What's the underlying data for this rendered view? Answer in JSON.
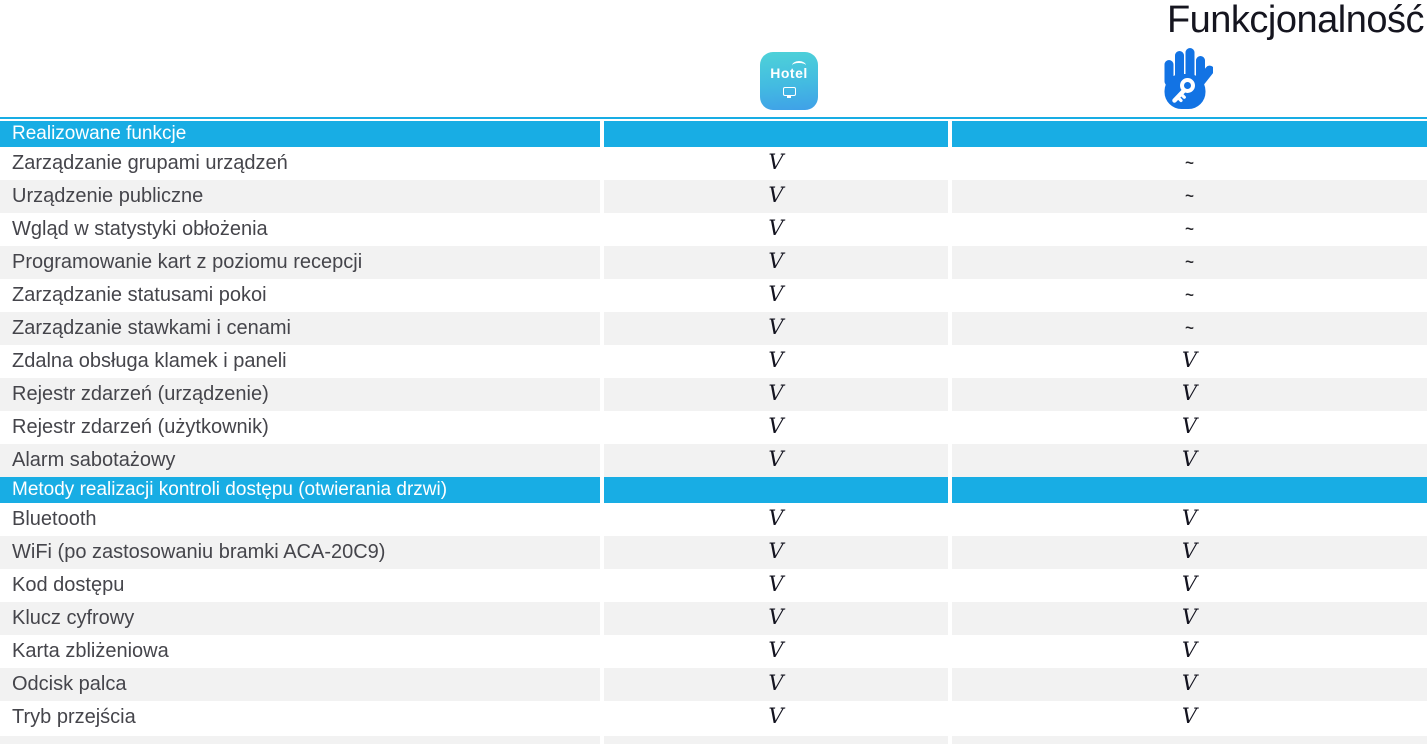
{
  "title": "Funkcjonalność",
  "icons": {
    "hotel": {
      "label": "Hotel"
    },
    "tthotel": {
      "description": "hand-with-key-app"
    }
  },
  "colors": {
    "accent_cyan": "#18ade4",
    "row_alt_gray": "#f2f2f2",
    "hand_blue": "#1273e4",
    "hotel_gradient_top": "#4ed2d8",
    "hotel_gradient_bottom": "#3fa0e8",
    "check_color": "#13131f",
    "title_color": "#15151f"
  },
  "table": {
    "value_symbols": {
      "supported": "V",
      "limited": "~"
    },
    "sections": [
      {
        "header": "Realizowane funkcje",
        "rows": [
          {
            "label": "Zarządzanie grupami urządzeń",
            "hotel": "V",
            "tthotel": "~"
          },
          {
            "label": "Urządzenie publiczne",
            "hotel": "V",
            "tthotel": "~"
          },
          {
            "label": "Wgląd w statystyki obłożenia",
            "hotel": "V",
            "tthotel": "~"
          },
          {
            "label": "Programowanie kart z poziomu recepcji",
            "hotel": "V",
            "tthotel": "~"
          },
          {
            "label": "Zarządzanie statusami pokoi",
            "hotel": "V",
            "tthotel": "~"
          },
          {
            "label": "Zarządzanie stawkami i cenami",
            "hotel": "V",
            "tthotel": "~"
          },
          {
            "label": "Zdalna obsługa klamek i paneli",
            "hotel": "V",
            "tthotel": "V"
          },
          {
            "label": "Rejestr zdarzeń (urządzenie)",
            "hotel": "V",
            "tthotel": "V"
          },
          {
            "label": "Rejestr zdarzeń (użytkownik)",
            "hotel": "V",
            "tthotel": "V"
          },
          {
            "label": "Alarm sabotażowy",
            "hotel": "V",
            "tthotel": "V"
          }
        ]
      },
      {
        "header": "Metody realizacji kontroli dostępu (otwierania drzwi)",
        "rows": [
          {
            "label": "Bluetooth",
            "hotel": "V",
            "tthotel": "V"
          },
          {
            "label": "WiFi (po zastosowaniu bramki ACA-20C9)",
            "hotel": "V",
            "tthotel": "V"
          },
          {
            "label": "Kod dostępu",
            "hotel": "V",
            "tthotel": "V"
          },
          {
            "label": "Klucz cyfrowy",
            "hotel": "V",
            "tthotel": "V"
          },
          {
            "label": "Karta zbliżeniowa",
            "hotel": "V",
            "tthotel": "V"
          },
          {
            "label": "Odcisk palca",
            "hotel": "V",
            "tthotel": "V"
          },
          {
            "label": "Tryb przejścia",
            "hotel": "V",
            "tthotel": "V"
          }
        ]
      }
    ]
  }
}
